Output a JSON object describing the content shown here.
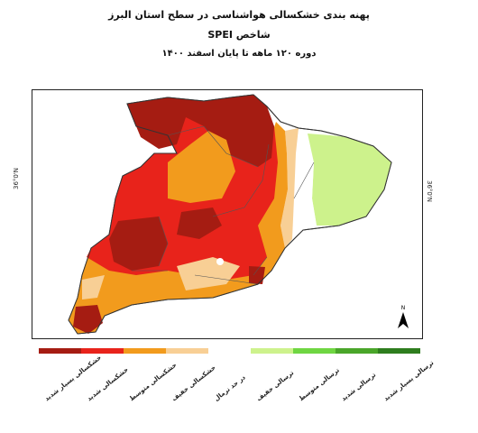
{
  "titles": {
    "line1": "پهنه بندی خشکسالی هواشناسی در سطح استان البرز",
    "line2": "شاخص SPEI",
    "line3": "دوره ۱۲۰ ماهه تا پایان اسفند ۱۴۰۰"
  },
  "map": {
    "lat_label_left": "36°0'N",
    "lat_label_right": "36°0'N",
    "north_label": "N"
  },
  "legend": [
    {
      "label": "خشکسالی بسیار شدید",
      "color": "#a51c12"
    },
    {
      "label": "خشکسالی شدید",
      "color": "#e8231b"
    },
    {
      "label": "خشکسالی متوسط",
      "color": "#f29b1d"
    },
    {
      "label": "خشکسالی خفیف",
      "color": "#f8cf95"
    },
    {
      "label": "در حد نرمال",
      "color": "#ffffff"
    },
    {
      "label": "ترسالی خفیف",
      "color": "#cdf28c"
    },
    {
      "label": "ترسالی متوسط",
      "color": "#6fd642"
    },
    {
      "label": "ترسالی شدید",
      "color": "#4aa62a"
    },
    {
      "label": "ترسالی بسیار شدید",
      "color": "#2e7d1e"
    }
  ]
}
